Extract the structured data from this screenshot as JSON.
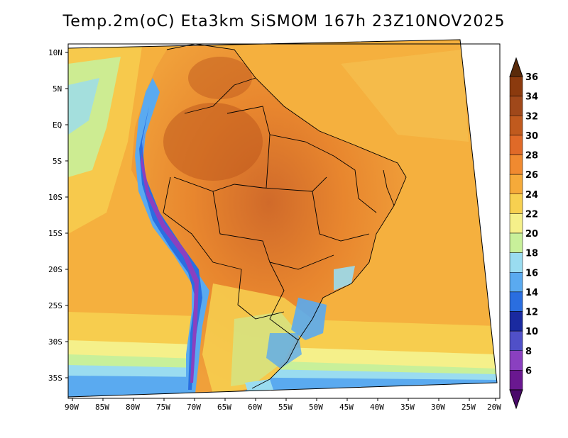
{
  "title": "Temp.2m(oC) Eta3km SiSMOM 167h 23Z10NOV2025",
  "map": {
    "variable": "Temp.2m",
    "units": "oC",
    "lat_labels": [
      "10N",
      "5N",
      "EQ",
      "5S",
      "10S",
      "15S",
      "20S",
      "25S",
      "30S",
      "35S"
    ],
    "lon_labels": [
      "90W",
      "85W",
      "80W",
      "75W",
      "70W",
      "65W",
      "60W",
      "55W",
      "50W",
      "45W",
      "40W",
      "35W",
      "30W",
      "25W",
      "20W"
    ]
  },
  "colorbar": {
    "labels": [
      "36",
      "34",
      "32",
      "30",
      "28",
      "26",
      "24",
      "22",
      "20",
      "18",
      "16",
      "14",
      "12",
      "10",
      "8",
      "6"
    ],
    "colors": [
      "#8b3a0e",
      "#a0481a",
      "#c05a1e",
      "#e06a28",
      "#f08a30",
      "#f5aa3a",
      "#f7d050",
      "#f5f08a",
      "#c8f09a",
      "#9adcf0",
      "#5aaaf0",
      "#2a6ee0",
      "#1a2aa0",
      "#5050c8",
      "#8a40c0",
      "#6a1890"
    ],
    "top_arrow_color": "#5a2a0a",
    "bottom_arrow_color": "#4a0a6a"
  }
}
